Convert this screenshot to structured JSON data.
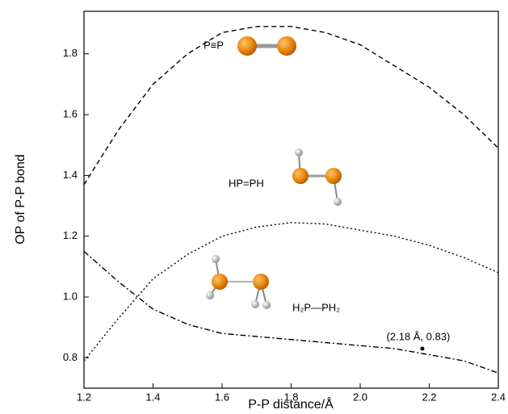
{
  "chart_data": {
    "type": "line",
    "x_label": "P-P distance/Å",
    "y_label": "OP of P-P bond",
    "x": [
      1.2,
      1.3,
      1.4,
      1.5,
      1.6,
      1.7,
      1.8,
      1.9,
      2.0,
      2.1,
      2.2,
      2.3,
      2.4
    ],
    "series": [
      {
        "name": "P≡P",
        "color": "#000000",
        "dash": "6,4",
        "values": [
          1.37,
          1.55,
          1.7,
          1.8,
          1.87,
          1.89,
          1.89,
          1.87,
          1.83,
          1.76,
          1.69,
          1.6,
          1.49
        ]
      },
      {
        "name": "HP=PH",
        "color": "#000000",
        "dash": "2,3",
        "values": [
          0.79,
          0.93,
          1.06,
          1.14,
          1.2,
          1.23,
          1.245,
          1.24,
          1.22,
          1.2,
          1.17,
          1.13,
          1.08
        ]
      },
      {
        "name": "H₂P—PH₂",
        "color": "#000000",
        "dash": "7,3,2,3",
        "values": [
          1.15,
          1.05,
          0.96,
          0.91,
          0.88,
          0.87,
          0.86,
          0.85,
          0.84,
          0.83,
          0.81,
          0.79,
          0.75
        ]
      }
    ],
    "annotations": [
      {
        "text": "(2.18 Å, 0.83)",
        "x": 2.18,
        "y": 0.83
      }
    ],
    "xlim": [
      1.2,
      2.4
    ],
    "xticks": [
      1.2,
      1.4,
      1.6,
      1.8,
      {
        "value": 2,
        "label": "2.0"
      },
      2.2,
      2.4
    ],
    "ylim": [
      0.7,
      1.94
    ],
    "yticks": [
      0.8,
      {
        "value": 1,
        "label": "1.0"
      },
      1.2,
      1.4,
      1.6,
      1.8
    ]
  }
}
